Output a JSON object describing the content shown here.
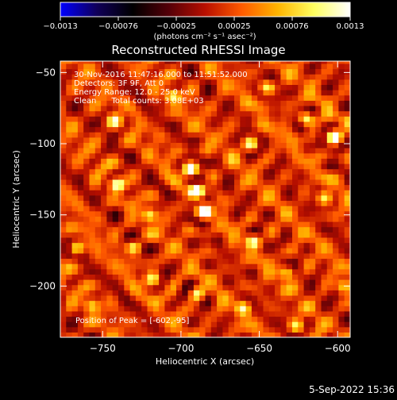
{
  "colorbar": {
    "ticks": [
      "-0.0013",
      "-0.00076",
      "-0.00025",
      "0.00025",
      "0.00076",
      "0.0013"
    ],
    "unit_label": "(photons cm⁻² s⁻¹ asec⁻²)",
    "colors": [
      "#0000ff",
      "#10005a",
      "#000000",
      "#550008",
      "#b80f00",
      "#ff5a00",
      "#ffb400",
      "#ffff60",
      "#ffffff"
    ]
  },
  "chart_data": {
    "type": "heatmap",
    "title": "Reconstructed RHESSI Image",
    "info_lines": [
      "30-Nov-2016 11:47:16.000 to 11:51:52.000",
      "Detectors: 3F 9F, Att 0",
      "Energy Range: 12.0 - 25.0 keV",
      "Clean      Total counts: 3.08E+03"
    ],
    "peak_text": "Position of Peak = [-602,-95]",
    "peak": {
      "x": -602,
      "y": -95
    },
    "xlabel": "Heliocentric X (arcsec)",
    "ylabel": "Heliocentric Y (arcsec)",
    "xlim": [
      -777,
      -592
    ],
    "ylim": [
      -236,
      -42
    ],
    "xticks": [
      {
        "value": -750,
        "label": "−750"
      },
      {
        "value": -700,
        "label": "−700"
      },
      {
        "value": -650,
        "label": "−650"
      },
      {
        "value": -600,
        "label": "−600"
      }
    ],
    "yticks": [
      {
        "value": -50,
        "label": "−50"
      },
      {
        "value": -100,
        "label": "−100"
      },
      {
        "value": -150,
        "label": "−150"
      },
      {
        "value": -200,
        "label": "−200"
      }
    ],
    "zrange": [
      -0.0013,
      0.0013
    ],
    "hot_spots": [
      {
        "x": -602,
        "y": -95,
        "value": 0.00125
      },
      {
        "x": -685,
        "y": -148,
        "value": 0.0011
      },
      {
        "x": -690,
        "y": -133,
        "value": 0.00105
      },
      {
        "x": -694,
        "y": -117,
        "value": 0.001
      },
      {
        "x": -741,
        "y": -128,
        "value": 0.0009
      },
      {
        "x": -767,
        "y": -173,
        "value": 0.0009
      },
      {
        "x": -654,
        "y": -168,
        "value": 0.0009
      },
      {
        "x": -620,
        "y": -82,
        "value": 0.0009
      },
      {
        "x": -720,
        "y": -150,
        "value": 0.0008
      },
      {
        "x": -705,
        "y": -66,
        "value": 0.00075
      },
      {
        "x": -655,
        "y": -100,
        "value": 0.0008
      },
      {
        "x": -718,
        "y": -195,
        "value": 0.00075
      },
      {
        "x": -660,
        "y": -215,
        "value": 0.00075
      },
      {
        "x": -632,
        "y": -190,
        "value": 0.0007
      },
      {
        "x": -608,
        "y": -138,
        "value": 0.0007
      },
      {
        "x": -757,
        "y": -213,
        "value": 0.0006
      },
      {
        "x": -742,
        "y": -84,
        "value": 0.0007
      },
      {
        "x": -645,
        "y": -60,
        "value": 0.0007
      },
      {
        "x": -690,
        "y": -205,
        "value": 0.0007
      },
      {
        "x": -626,
        "y": -228,
        "value": 0.00065
      },
      {
        "x": -596,
        "y": -200,
        "value": 0.0006
      },
      {
        "x": -730,
        "y": -172,
        "value": 0.00065
      }
    ]
  },
  "footer": {
    "timestamp": "5-Sep-2022 15:36"
  }
}
